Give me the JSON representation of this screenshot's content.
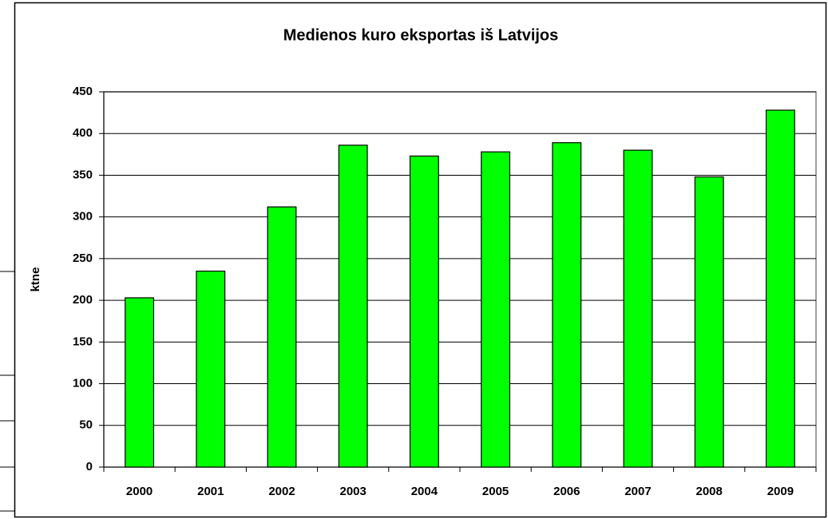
{
  "chart_data": {
    "type": "bar",
    "title": "Medienos kuro eksportas iš Latvijos",
    "y_label": "ktne",
    "categories": [
      "2000",
      "2001",
      "2002",
      "2003",
      "2004",
      "2005",
      "2006",
      "2007",
      "2008",
      "2009"
    ],
    "values": [
      203,
      235,
      312,
      386,
      373,
      378,
      389,
      380,
      348,
      428
    ],
    "color": "#00ff00",
    "ylim": [
      0,
      450
    ],
    "yticks": [
      0,
      50,
      100,
      150,
      200,
      250,
      300,
      350,
      400,
      450
    ],
    "grid": true
  }
}
